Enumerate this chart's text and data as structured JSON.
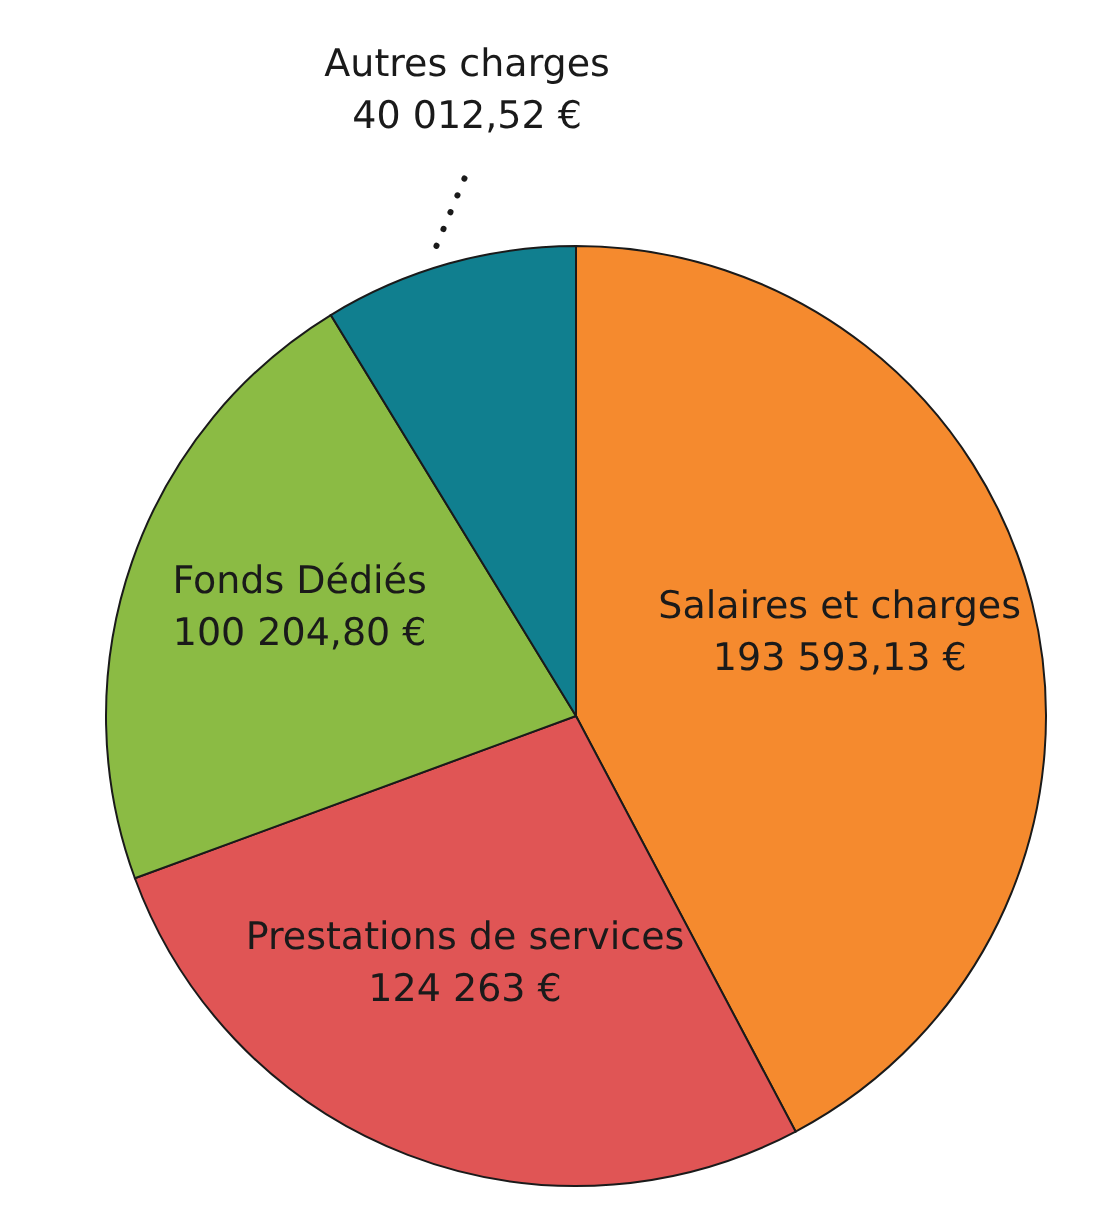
{
  "chart_data": {
    "type": "pie",
    "categories": [
      "Salaires et charges",
      "Prestations de services",
      "Fonds Dédiés",
      "Autres charges"
    ],
    "values": [
      193593.13,
      124263,
      100204.8,
      40012.52
    ],
    "value_labels": [
      "193 593,13 €",
      "124 263 €",
      "100 204,80 €",
      "40 012,52 €"
    ],
    "colors": [
      "#f58a2e",
      "#e05555",
      "#8bbb44",
      "#107f8f"
    ]
  }
}
